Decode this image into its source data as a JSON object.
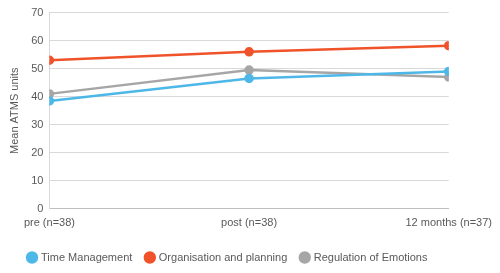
{
  "chart_data": {
    "type": "line",
    "y_label": "Mean ATMS units",
    "categories": [
      "pre (n=38)",
      "post (n=38)",
      "12 months (n=37)"
    ],
    "series": [
      {
        "name": "Time Management",
        "color": "#4db8e8",
        "values": [
          38.5,
          46.5,
          49
        ]
      },
      {
        "name": "Organisation and planning",
        "color": "#f0522a",
        "values": [
          53,
          56,
          58.2
        ]
      },
      {
        "name": "Regulation of Emotions",
        "color": "#a6a6a6",
        "values": [
          41,
          49.5,
          47
        ]
      }
    ],
    "ylim": [
      0,
      70
    ],
    "yticks": [
      0,
      10,
      20,
      30,
      40,
      50,
      60,
      70
    ],
    "grid": true,
    "legend": "bottom",
    "marker": "circle"
  }
}
